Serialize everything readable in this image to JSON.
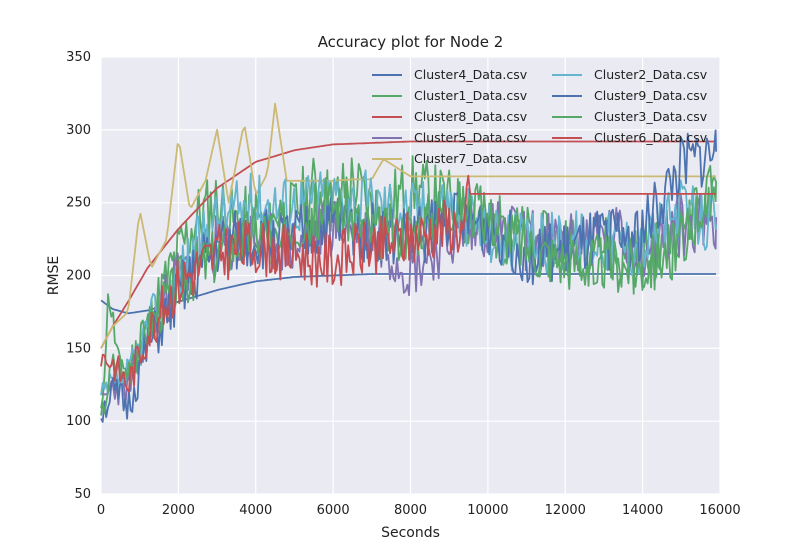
{
  "chart_data": {
    "type": "line",
    "title": "Accuracy plot for Node 2",
    "xlabel": "Seconds",
    "ylabel": "RMSE",
    "xlim": [
      0,
      16000
    ],
    "ylim": [
      50,
      350
    ],
    "xticks": [
      0,
      2000,
      4000,
      6000,
      8000,
      10000,
      12000,
      14000,
      16000
    ],
    "yticks": [
      50,
      100,
      150,
      200,
      250,
      300,
      350
    ],
    "xtick_labels": [
      "0",
      "2000",
      "4000",
      "6000",
      "8000",
      "10000",
      "12000",
      "14000",
      "16000"
    ],
    "ytick_labels": [
      "50",
      "100",
      "150",
      "200",
      "250",
      "300",
      "350"
    ],
    "grid": true,
    "background": "#EAEAF2",
    "legend_placement": "upper-right, two columns",
    "series": [
      {
        "name": "Cluster4_Data.csv",
        "color": "#4C72B0",
        "style": "smooth",
        "x": [
          0,
          300,
          700,
          1200,
          2000,
          3000,
          4000,
          5000,
          6000,
          7000,
          8000,
          9000,
          10000,
          12000,
          14000,
          15900
        ],
        "y": [
          183,
          177,
          174,
          176,
          182,
          190,
          196,
          199,
          200,
          201,
          201,
          201,
          201,
          201,
          201,
          201
        ]
      },
      {
        "name": "Cluster1_Data.csv",
        "color": "#55A868",
        "style": "noisy",
        "x": [
          0,
          200,
          500,
          1000,
          1500,
          2000,
          2500,
          3000,
          3500,
          4000,
          4500,
          5000,
          5500,
          6000,
          6500,
          7000,
          7500,
          8000,
          8500,
          9000,
          9500,
          10000,
          10500,
          11000,
          11500,
          12000,
          12500,
          13000,
          13500,
          14000,
          14500,
          15000,
          15500,
          15900
        ],
        "y": [
          100,
          190,
          130,
          150,
          185,
          215,
          240,
          250,
          235,
          240,
          225,
          245,
          260,
          250,
          265,
          245,
          250,
          260,
          255,
          250,
          240,
          235,
          230,
          225,
          220,
          225,
          215,
          220,
          210,
          212,
          215,
          225,
          245,
          265
        ],
        "amp": 24,
        "seed": 11
      },
      {
        "name": "Cluster8_Data.csv",
        "color": "#C44E52",
        "style": "smooth",
        "x": [
          0,
          300,
          700,
          1200,
          2000,
          3000,
          4000,
          5000,
          6000,
          7000,
          8000,
          9000,
          9500,
          10000,
          12000,
          14000,
          15900
        ],
        "y": [
          150,
          165,
          182,
          205,
          232,
          260,
          278,
          286,
          290,
          291,
          292,
          292,
          292,
          292,
          292,
          292,
          292
        ]
      },
      {
        "name": "Cluster5_Data.csv",
        "color": "#8172B2",
        "style": "noisy",
        "x": [
          0,
          300,
          700,
          1200,
          2000,
          3000,
          4000,
          5000,
          6000,
          7000,
          8000,
          9000,
          10000,
          11000,
          12000,
          13000,
          14000,
          15000,
          15900
        ],
        "y": [
          110,
          125,
          120,
          160,
          200,
          220,
          225,
          220,
          235,
          230,
          205,
          225,
          235,
          225,
          220,
          230,
          220,
          235,
          240
        ],
        "amp": 22,
        "seed": 23
      },
      {
        "name": "Cluster7_Data.csv",
        "color": "#CCB974",
        "style": "flat-after",
        "x": [
          0,
          300,
          700,
          1000,
          1300,
          1700,
          2000,
          2300,
          2700,
          3000,
          3300,
          3700,
          4000,
          4300,
          4500,
          4800,
          5200,
          5500,
          6000,
          6500,
          7000,
          7300,
          8000,
          9500,
          15900
        ],
        "y": [
          150,
          165,
          175,
          245,
          205,
          225,
          295,
          245,
          265,
          300,
          250,
          305,
          255,
          270,
          318,
          265,
          265,
          265,
          265,
          266,
          266,
          280,
          268,
          268,
          268
        ]
      },
      {
        "name": "Cluster2_Data.csv",
        "color": "#64B5CD",
        "style": "noisy",
        "x": [
          0,
          300,
          700,
          1200,
          2000,
          3000,
          4000,
          5000,
          6000,
          7000,
          8000,
          9000,
          10000,
          11000,
          12000,
          13000,
          14000,
          15000,
          15900
        ],
        "y": [
          115,
          125,
          130,
          165,
          200,
          240,
          250,
          250,
          255,
          250,
          245,
          250,
          230,
          220,
          225,
          225,
          220,
          245,
          235
        ],
        "amp": 22,
        "seed": 37
      },
      {
        "name": "Cluster9_Data.csv",
        "color": "#4C72B0",
        "style": "noisy",
        "x": [
          0,
          300,
          700,
          1200,
          2000,
          3000,
          4000,
          5000,
          6000,
          7000,
          8000,
          9000,
          10000,
          11000,
          12000,
          13000,
          14000,
          15000,
          15900
        ],
        "y": [
          105,
          120,
          110,
          150,
          185,
          220,
          225,
          225,
          235,
          230,
          225,
          240,
          235,
          215,
          215,
          225,
          230,
          275,
          285
        ],
        "amp": 22,
        "seed": 51
      },
      {
        "name": "Cluster3_Data.csv",
        "color": "#55A868",
        "style": "noisy",
        "x": [
          0,
          300,
          700,
          1200,
          2000,
          3000,
          4000,
          5000,
          6000,
          7000,
          8000,
          9000,
          10000,
          11000,
          12000,
          13000,
          14000,
          15000,
          15900
        ],
        "y": [
          100,
          140,
          135,
          165,
          195,
          215,
          230,
          235,
          250,
          230,
          230,
          250,
          240,
          220,
          210,
          210,
          205,
          225,
          265
        ],
        "amp": 20,
        "seed": 67
      },
      {
        "name": "Cluster6_Data.csv",
        "color": "#C44E52",
        "style": "noisy-then-flat",
        "x": [
          0,
          300,
          700,
          1200,
          2000,
          3000,
          4000,
          5000,
          6000,
          7000,
          8000,
          9000,
          9400,
          9500,
          15900
        ],
        "y": [
          145,
          140,
          125,
          160,
          195,
          215,
          220,
          215,
          210,
          220,
          225,
          235,
          230,
          256,
          256
        ],
        "amp": 20,
        "seed": 83,
        "flat_from": 9500
      }
    ]
  }
}
